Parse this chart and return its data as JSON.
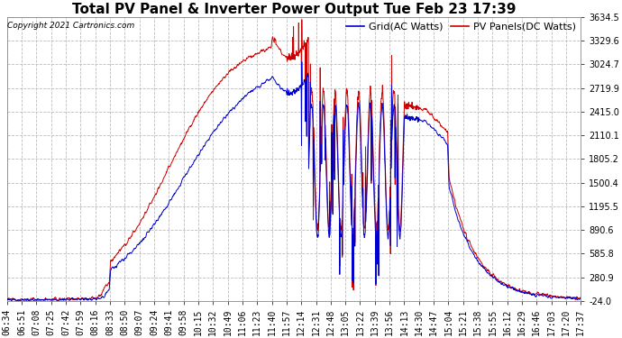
{
  "title": "Total PV Panel & Inverter Power Output Tue Feb 23 17:39",
  "copyright": "Copyright 2021 Cartronics.com",
  "legend_blue": "Grid(AC Watts)",
  "legend_red": "PV Panels(DC Watts)",
  "yticks": [
    3634.5,
    3329.6,
    3024.7,
    2719.9,
    2415.0,
    2110.1,
    1805.2,
    1500.4,
    1195.5,
    890.6,
    585.8,
    280.9,
    -24.0
  ],
  "xtick_labels": [
    "06:34",
    "06:51",
    "07:08",
    "07:25",
    "07:42",
    "07:59",
    "08:16",
    "08:33",
    "08:50",
    "09:07",
    "09:24",
    "09:41",
    "09:58",
    "10:15",
    "10:32",
    "10:49",
    "11:06",
    "11:23",
    "11:40",
    "11:57",
    "12:14",
    "12:31",
    "12:48",
    "13:05",
    "13:22",
    "13:39",
    "13:56",
    "14:13",
    "14:30",
    "14:47",
    "15:04",
    "15:21",
    "15:38",
    "15:55",
    "16:12",
    "16:29",
    "16:46",
    "17:03",
    "17:20",
    "17:37"
  ],
  "ylim": [
    -24.0,
    3634.5
  ],
  "background_color": "#ffffff",
  "grid_color": "#bbbbbb",
  "blue_color": "#0000cc",
  "red_color": "#cc0000",
  "title_fontsize": 11,
  "tick_fontsize": 7,
  "legend_fontsize": 8,
  "copyright_fontsize": 6.5
}
